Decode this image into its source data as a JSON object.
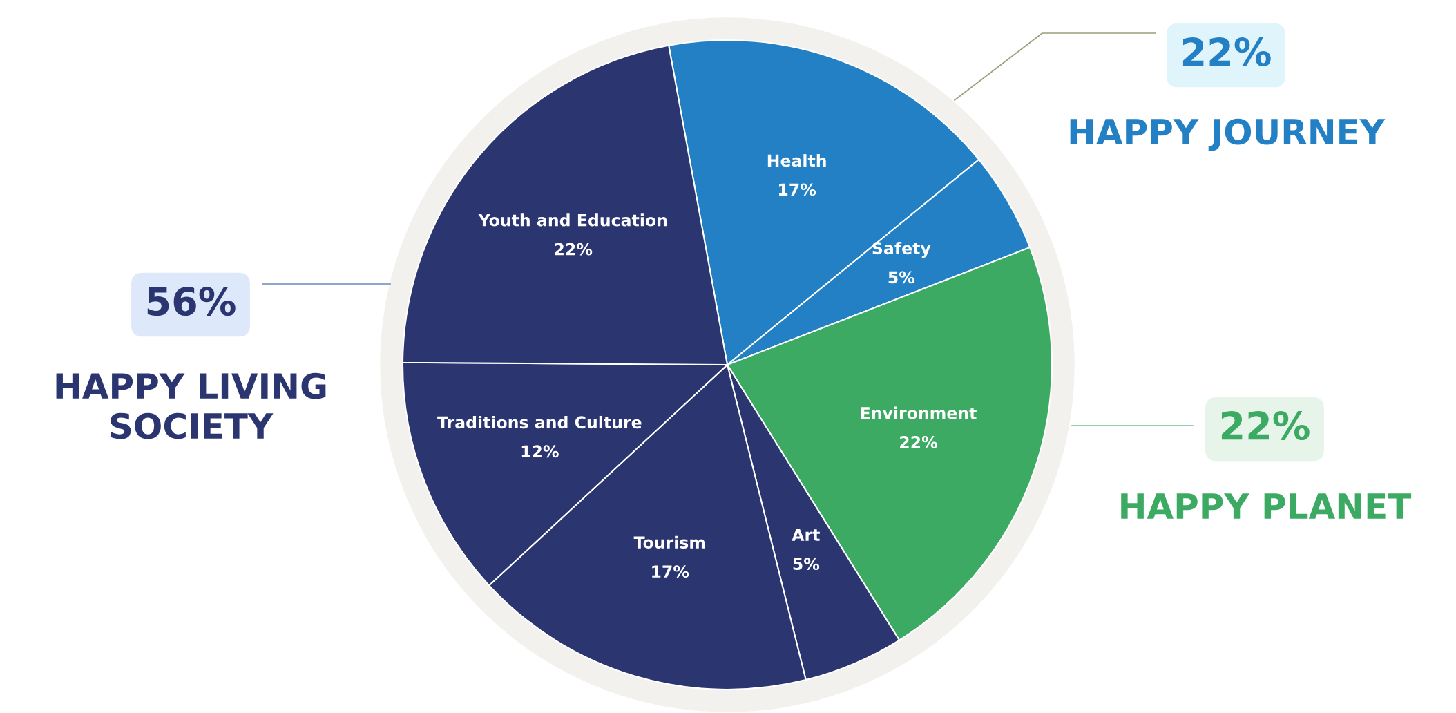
{
  "chart_data": {
    "type": "pie",
    "categories": [
      "Health",
      "Safety",
      "Environment",
      "Art",
      "Tourism",
      "Traditions and Culture",
      "Youth and Education"
    ],
    "values": [
      17,
      5,
      22,
      5,
      17,
      12,
      22
    ],
    "value_labels": [
      "17%",
      "5%",
      "22%",
      "5%",
      "17%",
      "12%",
      "22%"
    ],
    "colors": [
      "#2380c4",
      "#2380c4",
      "#3daa63",
      "#2b3670",
      "#2b3670",
      "#2b3670",
      "#2b3670"
    ],
    "annotations": [
      "22%",
      "HAPPY JOURNEY",
      "56%",
      "HAPPY LIVING\nSOCIETY",
      "22%",
      "HAPPY PLANET"
    ],
    "legend": false
  }
}
